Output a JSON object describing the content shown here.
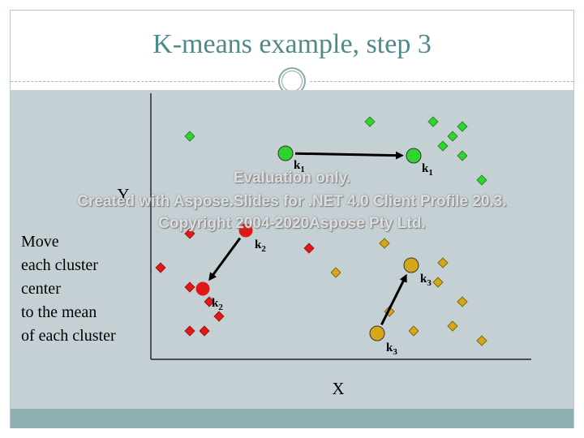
{
  "slide": {
    "title": "K-means example, step 3",
    "caption": [
      "Move",
      "each cluster",
      "center",
      "to the mean",
      "of each cluster"
    ]
  },
  "axes": {
    "x_label": "X",
    "y_label": "Y"
  },
  "colors": {
    "background": "#c5d0d5",
    "title": "#4f8a8a",
    "footer_bar": "#8fb0b0",
    "green": "#2fd42f",
    "red": "#e01818",
    "gold": "#d4a818"
  },
  "clusters": [
    {
      "name": "green",
      "center_label_main": "k",
      "center_label_sub": "1",
      "points": [
        [
          234,
          168
        ],
        [
          456,
          150
        ],
        [
          534,
          150
        ],
        [
          558,
          168
        ],
        [
          570,
          156
        ],
        [
          546,
          180
        ],
        [
          570,
          192
        ],
        [
          594,
          222
        ]
      ],
      "old_center": [
        352,
        189
      ],
      "new_center": [
        510,
        192
      ],
      "old_label_pos": [
        362,
        208
      ],
      "new_label_pos": [
        520,
        212
      ]
    },
    {
      "name": "red",
      "center_label_main": "k",
      "center_label_sub": "2",
      "points": [
        [
          198,
          330
        ],
        [
          234,
          354
        ],
        [
          258,
          372
        ],
        [
          270,
          390
        ],
        [
          234,
          408
        ],
        [
          252,
          408
        ],
        [
          234,
          288
        ],
        [
          381,
          306
        ]
      ],
      "old_center": [
        303,
        284
      ],
      "new_center": [
        250,
        356
      ],
      "old_label_pos": [
        314,
        306
      ],
      "new_label_pos": [
        261,
        378
      ]
    },
    {
      "name": "gold",
      "center_label_main": "k",
      "center_label_sub": "3",
      "points": [
        [
          474,
          300
        ],
        [
          414,
          336
        ],
        [
          546,
          324
        ],
        [
          540,
          348
        ],
        [
          570,
          372
        ],
        [
          480,
          384
        ],
        [
          510,
          408
        ],
        [
          558,
          402
        ],
        [
          594,
          420
        ]
      ],
      "old_center": [
        465,
        411
      ],
      "new_center": [
        507,
        327
      ],
      "old_label_pos": [
        476,
        433
      ],
      "new_label_pos": [
        518,
        348
      ]
    }
  ],
  "watermark": [
    "Evaluation only.",
    "Created with Aspose.Slides for .NET 4.0 Client Profile 20.3.",
    "Copyright 2004-2020Aspose Pty Ltd."
  ]
}
